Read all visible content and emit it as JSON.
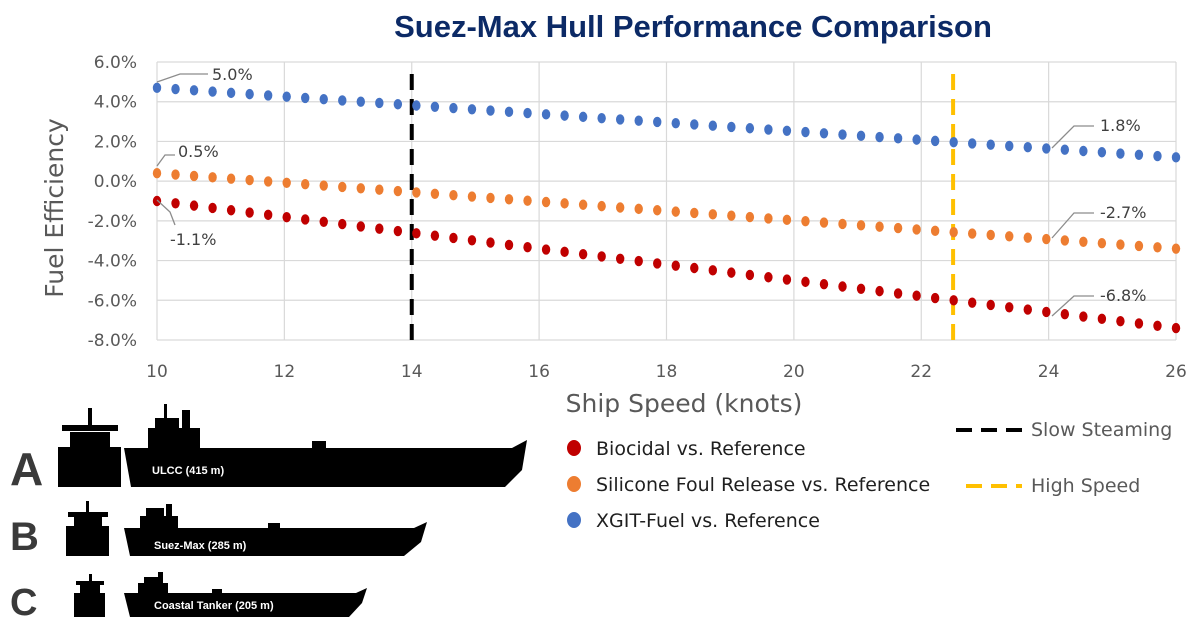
{
  "chart_data": {
    "type": "scatter",
    "title": "Suez-Max Hull Performance Comparison",
    "xlabel": "Ship Speed (knots)",
    "ylabel": "Fuel Efficiency",
    "xlim": [
      10,
      26
    ],
    "ylim": [
      -8.0,
      6.0
    ],
    "x_ticks": [
      "10",
      "12",
      "14",
      "16",
      "18",
      "20",
      "22",
      "24",
      "26"
    ],
    "y_ticks": [
      "6.0%",
      "4.0%",
      "2.0%",
      "0.0%",
      "-2.0%",
      "-4.0%",
      "-6.0%",
      "-8.0%"
    ],
    "grid": true,
    "series": [
      {
        "name": "XGIT-Fuel vs. Reference",
        "color": "#4472c4",
        "y_start": 4.7,
        "y_end": 1.2
      },
      {
        "name": "Silicone Foul Release vs. Reference",
        "color": "#ed7d31",
        "y_start": 0.4,
        "y_end": -3.4
      },
      {
        "name": "Biocidal vs. Reference",
        "color": "#c00000",
        "y_start": -1.0,
        "y_end": -7.4
      }
    ],
    "reference_lines": [
      {
        "name": "Slow Steaming",
        "x": 14,
        "color": "#000000"
      },
      {
        "name": "High Speed",
        "x": 22.5,
        "color": "#ffc000"
      }
    ],
    "annotations": [
      {
        "text": "5.0%",
        "x": 10,
        "y": 5.0
      },
      {
        "text": "0.5%",
        "x": 10,
        "y": 0.5
      },
      {
        "text": "-1.1%",
        "x": 10,
        "y": -1.1
      },
      {
        "text": "1.8%",
        "x": 24,
        "y": 1.8
      },
      {
        "text": "-2.7%",
        "x": 24,
        "y": -2.7
      },
      {
        "text": "-6.8%",
        "x": 24,
        "y": -6.8
      }
    ]
  },
  "legend": {
    "items": [
      {
        "label": "Biocidal vs. Reference",
        "color": "#c00000"
      },
      {
        "label": "Silicone Foul Release vs. Reference",
        "color": "#ed7d31"
      },
      {
        "label": "XGIT-Fuel vs. Reference",
        "color": "#4472c4"
      },
      {
        "label": "Slow Steaming",
        "color": "#000000"
      },
      {
        "label": "High Speed",
        "color": "#ffc000"
      }
    ]
  },
  "ships": [
    {
      "letter": "A",
      "label": "ULCC (415 m)"
    },
    {
      "letter": "B",
      "label": "Suez-Max (285 m)"
    },
    {
      "letter": "C",
      "label": "Coastal Tanker (205 m)"
    }
  ]
}
